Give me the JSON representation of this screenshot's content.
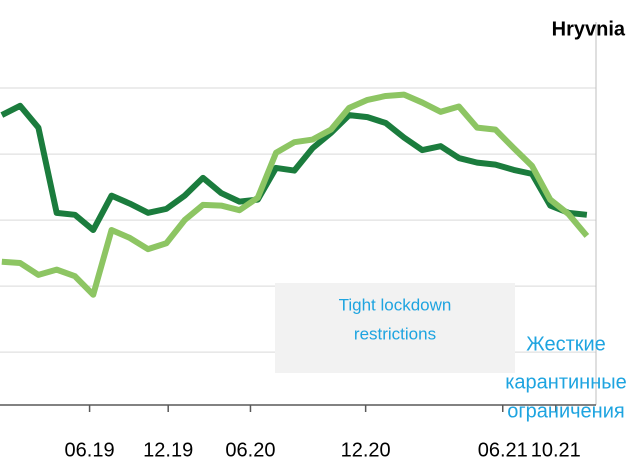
{
  "chart_data": {
    "type": "line",
    "title": "Hryvnia",
    "x": [
      0,
      1,
      2,
      3,
      4,
      5,
      6,
      7,
      8,
      9,
      10,
      11,
      12,
      13,
      14,
      15,
      16,
      17,
      18,
      19,
      20,
      21,
      22,
      23,
      24,
      25,
      26,
      27,
      28,
      29,
      30,
      31,
      32
    ],
    "xlim": [
      -0.1,
      32.5
    ],
    "xticks": [
      {
        "value": 4.8,
        "label": "06.19"
      },
      {
        "value": 9.1,
        "label": "12.19"
      },
      {
        "value": 13.6,
        "label": "06.20"
      },
      {
        "value": 19.9,
        "label": "12.20"
      },
      {
        "value": 27.4,
        "label": "06.21"
      },
      {
        "value": 30.3,
        "label": "10.21"
      }
    ],
    "ylim": [
      0.2,
      6
    ],
    "yticks": [
      1,
      2,
      3,
      4,
      5
    ],
    "grid": true,
    "series": [
      {
        "color": "#1b7c3d",
        "values": [
          4.59,
          4.73,
          4.4,
          3.11,
          3.08,
          2.85,
          3.37,
          3.25,
          3.11,
          3.17,
          3.37,
          3.64,
          3.41,
          3.28,
          3.31,
          3.79,
          3.75,
          4.09,
          4.32,
          4.59,
          4.56,
          4.47,
          4.25,
          4.06,
          4.12,
          3.94,
          3.87,
          3.84,
          3.76,
          3.7,
          3.22,
          3.11,
          3.08
        ]
      },
      {
        "color": "#8dc563",
        "values": [
          2.37,
          2.35,
          2.17,
          2.25,
          2.15,
          1.87,
          2.85,
          2.73,
          2.56,
          2.65,
          3.0,
          3.23,
          3.22,
          3.15,
          3.34,
          4.02,
          4.18,
          4.22,
          4.37,
          4.7,
          4.82,
          4.88,
          4.9,
          4.78,
          4.64,
          4.72,
          4.4,
          4.37,
          4.09,
          3.82,
          3.31,
          3.09,
          2.76
        ]
      }
    ],
    "annotations": [
      {
        "text": [
          "Tight lockdown",
          "restrictions"
        ]
      },
      {
        "text": [
          "Жесткие",
          "карантинные",
          "ограничения"
        ]
      }
    ]
  }
}
